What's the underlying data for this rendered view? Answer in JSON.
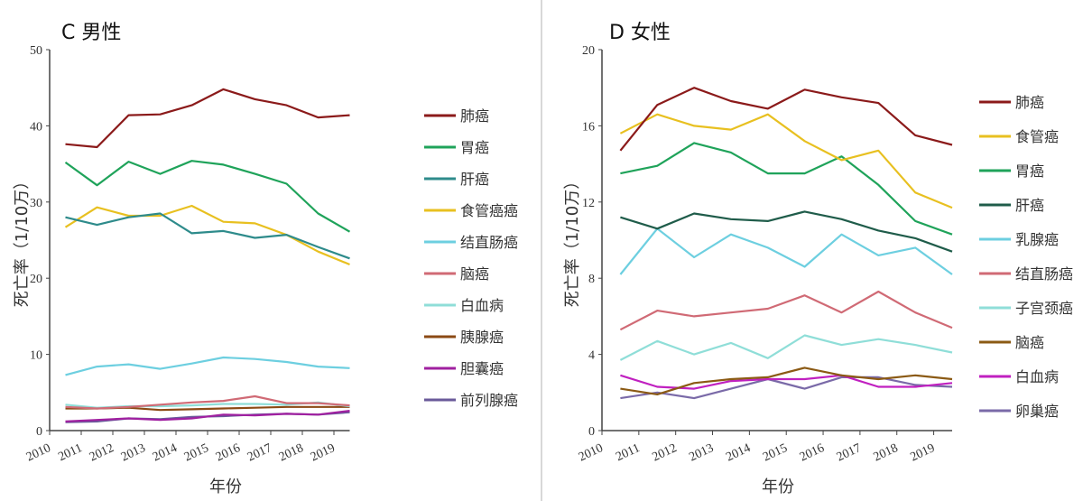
{
  "chart_data": [
    {
      "type": "line",
      "title": "C 男性",
      "xlabel": "年份",
      "ylabel": "死亡率（1/10万）",
      "categories": [
        "2010",
        "2011",
        "2012",
        "2013",
        "2014",
        "2015",
        "2016",
        "2017",
        "2018",
        "2019"
      ],
      "ylim": [
        0,
        50
      ],
      "yticks": [
        0,
        10,
        20,
        30,
        40,
        50
      ],
      "grid": false,
      "legend": "right",
      "series": [
        {
          "name": "肺癌",
          "color": "#8b1a1a",
          "values": [
            37.6,
            37.2,
            41.4,
            41.5,
            42.7,
            44.8,
            43.5,
            42.7,
            41.1,
            41.4
          ]
        },
        {
          "name": "胃癌",
          "color": "#1fa35a",
          "values": [
            35.2,
            32.2,
            35.3,
            33.7,
            35.4,
            34.9,
            33.7,
            32.4,
            28.5,
            26.1
          ]
        },
        {
          "name": "肝癌",
          "color": "#2e8b8b",
          "values": [
            28.0,
            27.0,
            28.0,
            28.5,
            25.9,
            26.2,
            25.3,
            25.7,
            24.1,
            22.6
          ]
        },
        {
          "name": "食管癌癌",
          "color": "#e8c020",
          "values": [
            26.7,
            29.3,
            28.2,
            28.2,
            29.5,
            27.4,
            27.2,
            25.7,
            23.5,
            21.8
          ]
        },
        {
          "name": "结直肠癌",
          "color": "#6dcfe0",
          "values": [
            7.3,
            8.4,
            8.7,
            8.1,
            8.8,
            9.6,
            9.4,
            9.0,
            8.4,
            8.2
          ]
        },
        {
          "name": "脑癌",
          "color": "#d06a75",
          "values": [
            3.1,
            2.9,
            3.1,
            3.4,
            3.7,
            3.9,
            4.5,
            3.6,
            3.6,
            3.3
          ]
        },
        {
          "name": "白血病",
          "color": "#8fded8",
          "values": [
            3.4,
            3.0,
            3.2,
            3.2,
            3.3,
            3.5,
            3.5,
            3.4,
            3.7,
            3.2
          ]
        },
        {
          "name": "胰腺癌",
          "color": "#8b4a14",
          "values": [
            2.9,
            2.9,
            3.0,
            2.7,
            2.8,
            2.9,
            3.0,
            3.1,
            3.1,
            3.1
          ]
        },
        {
          "name": "胆囊癌",
          "color": "#a020a0",
          "values": [
            1.2,
            1.4,
            1.6,
            1.4,
            1.6,
            2.1,
            2.0,
            2.2,
            2.1,
            2.6
          ]
        },
        {
          "name": "前列腺癌",
          "color": "#6a5a9a",
          "values": [
            1.1,
            1.2,
            1.6,
            1.5,
            1.8,
            1.9,
            2.1,
            2.2,
            2.1,
            2.4
          ]
        }
      ]
    },
    {
      "type": "line",
      "title": "D 女性",
      "xlabel": "年份",
      "ylabel": "死亡率（1/10万）",
      "categories": [
        "2010",
        "2011",
        "2012",
        "2013",
        "2014",
        "2015",
        "2016",
        "2017",
        "2018",
        "2019"
      ],
      "ylim": [
        0,
        20
      ],
      "yticks": [
        0,
        4,
        8,
        12,
        16,
        20
      ],
      "grid": false,
      "legend": "right",
      "series": [
        {
          "name": "肺癌",
          "color": "#8b1a1a",
          "values": [
            14.7,
            17.1,
            18.0,
            17.3,
            16.9,
            17.9,
            17.5,
            17.2,
            15.5,
            15.0
          ]
        },
        {
          "name": "食管癌",
          "color": "#e8c020",
          "values": [
            15.6,
            16.6,
            16.0,
            15.8,
            16.6,
            15.2,
            14.2,
            14.7,
            12.5,
            11.7
          ]
        },
        {
          "name": "胃癌",
          "color": "#1fa35a",
          "values": [
            13.5,
            13.9,
            15.1,
            14.6,
            13.5,
            13.5,
            14.4,
            12.9,
            11.0,
            10.3
          ]
        },
        {
          "name": "肝癌",
          "color": "#1f5c4a",
          "values": [
            11.2,
            10.6,
            11.4,
            11.1,
            11.0,
            11.5,
            11.1,
            10.5,
            10.1,
            9.4
          ]
        },
        {
          "name": "乳腺癌",
          "color": "#6dcfe0",
          "values": [
            8.2,
            10.6,
            9.1,
            10.3,
            9.6,
            8.6,
            10.3,
            9.2,
            9.6,
            8.2
          ]
        },
        {
          "name": "结直肠癌",
          "color": "#d06a75",
          "values": [
            5.3,
            6.3,
            6.0,
            6.2,
            6.4,
            7.1,
            6.2,
            7.3,
            6.2,
            5.4
          ]
        },
        {
          "name": "子宫颈癌",
          "color": "#8fded8",
          "values": [
            3.7,
            4.7,
            4.0,
            4.6,
            3.8,
            5.0,
            4.5,
            4.8,
            4.5,
            4.1
          ]
        },
        {
          "name": "脑癌",
          "color": "#8b5a14",
          "values": [
            2.2,
            1.9,
            2.5,
            2.7,
            2.8,
            3.3,
            2.9,
            2.7,
            2.9,
            2.7
          ]
        },
        {
          "name": "白血病",
          "color": "#c020c0",
          "values": [
            2.9,
            2.3,
            2.2,
            2.6,
            2.7,
            2.7,
            2.9,
            2.3,
            2.3,
            2.5
          ]
        },
        {
          "name": "卵巢癌",
          "color": "#7a6aa8",
          "values": [
            1.7,
            2.0,
            1.7,
            2.2,
            2.7,
            2.2,
            2.8,
            2.8,
            2.4,
            2.3
          ]
        }
      ]
    }
  ]
}
